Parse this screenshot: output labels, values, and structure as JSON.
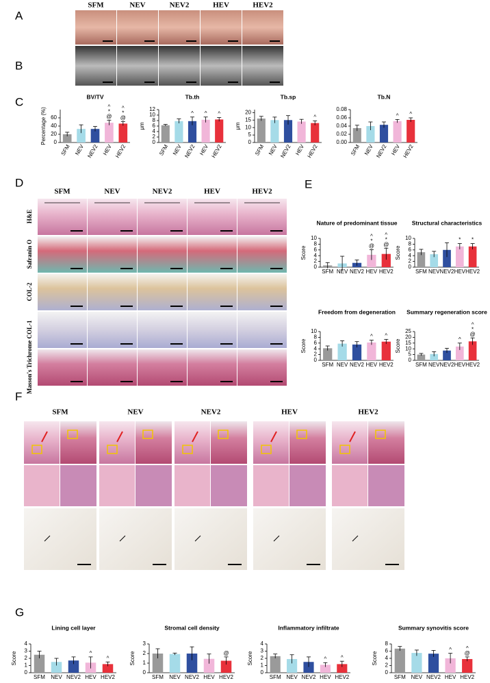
{
  "figure": {
    "panel_labels": [
      "A",
      "B",
      "C",
      "D",
      "E",
      "F",
      "G"
    ],
    "a_columns": [
      "SFM",
      "NEV",
      "NEV2",
      "HEV",
      "HEV2"
    ],
    "d_columns": [
      "SFM",
      "NEV",
      "NEV2",
      "HEV",
      "HEV2"
    ],
    "d_rows": [
      "H&E",
      "Safranin O",
      "COL-2",
      "COL-1",
      "Masson's Trichrome"
    ],
    "f_columns": [
      "SFM",
      "NEV",
      "NEV2",
      "HEV",
      "HEV2"
    ]
  },
  "chart_data": [
    {
      "type": "bar",
      "title": "BV/TV",
      "ylabel": "Percentage (%)",
      "categories": [
        "SFM",
        "NEV",
        "NEV2",
        "HEV",
        "HEV2"
      ],
      "colors": [
        "#9a9a9a",
        "#a5dbe8",
        "#2f4f9f",
        "#f1b6d9",
        "#e8313b"
      ],
      "values": [
        20,
        33,
        33,
        48,
        46
      ],
      "errors": [
        5,
        10,
        6,
        6,
        5
      ],
      "markers": [
        [],
        [],
        [],
        [
          "^",
          "*",
          "@"
        ],
        [
          "^",
          "*",
          "@"
        ]
      ],
      "ylim": [
        0,
        80
      ],
      "yticks": [
        0,
        20,
        40,
        60
      ]
    },
    {
      "type": "bar",
      "title": "Tb.th",
      "ylabel": "μm",
      "categories": [
        "SFM",
        "NEV",
        "NEV2",
        "HEV",
        "HEV2"
      ],
      "colors": [
        "#9a9a9a",
        "#a5dbe8",
        "#2f4f9f",
        "#f1b6d9",
        "#e8313b"
      ],
      "values": [
        6.3,
        7.8,
        7.8,
        8.3,
        8.4
      ],
      "errors": [
        0.3,
        0.8,
        1.5,
        1,
        0.7
      ],
      "markers": [
        [],
        [],
        [
          "^"
        ],
        [
          "^"
        ],
        [
          "^"
        ]
      ],
      "ylim": [
        0,
        12
      ],
      "yticks": [
        0,
        2,
        4,
        6,
        8,
        10,
        12
      ]
    },
    {
      "type": "bar",
      "title": "Tb.sp",
      "ylabel": "μm",
      "categories": [
        "SFM",
        "NEV",
        "NEV2",
        "HEV",
        "HEV2"
      ],
      "colors": [
        "#9a9a9a",
        "#a5dbe8",
        "#2f4f9f",
        "#f1b6d9",
        "#e8313b"
      ],
      "values": [
        16,
        15,
        15,
        14,
        13
      ],
      "errors": [
        1.5,
        2,
        3,
        1.5,
        1.5
      ],
      "markers": [
        [],
        [],
        [],
        [],
        [
          "^"
        ]
      ],
      "ylim": [
        0,
        22
      ],
      "yticks": [
        0,
        5,
        10,
        15,
        20
      ]
    },
    {
      "type": "bar",
      "title": "Tb.N",
      "categories": [
        "SFM",
        "NEV",
        "NEV2",
        "HEV",
        "HEV2"
      ],
      "colors": [
        "#9a9a9a",
        "#a5dbe8",
        "#2f4f9f",
        "#f1b6d9",
        "#e8313b"
      ],
      "values": [
        0.035,
        0.04,
        0.043,
        0.052,
        0.055
      ],
      "errors": [
        0.007,
        0.01,
        0.007,
        0.004,
        0.005
      ],
      "markers": [
        [],
        [],
        [],
        [
          "^"
        ],
        [
          "^"
        ]
      ],
      "ylim": [
        0,
        0.08
      ],
      "yticks": [
        {
          "value": 0,
          "label": "0.00"
        },
        0.02,
        0.04,
        0.06,
        0.08
      ]
    },
    {
      "type": "bar",
      "title": "Nature of predominant tissue",
      "ylabel": "Score",
      "categories": [
        "SFM",
        "NEV",
        "NEV2",
        "HEV",
        "HEV2"
      ],
      "colors": [
        "#9a9a9a",
        "#a5dbe8",
        "#2f4f9f",
        "#f1b6d9",
        "#e8313b"
      ],
      "values": [
        0.6,
        1.3,
        1.5,
        4.3,
        4.6
      ],
      "errors": [
        1,
        2.5,
        1,
        1.8,
        2
      ],
      "markers": [
        [],
        [],
        [],
        [
          "^",
          "*",
          "@"
        ],
        [
          "^",
          "*",
          "@"
        ]
      ],
      "ylim": [
        0,
        10
      ],
      "yticks": [
        0,
        2,
        4,
        6,
        8,
        10
      ]
    },
    {
      "type": "bar",
      "title": "Structural characteristics",
      "ylabel": "Score",
      "categories": [
        "SFM",
        "NEV",
        "NEV2",
        "HEV",
        "HEV2"
      ],
      "colors": [
        "#9a9a9a",
        "#a5dbe8",
        "#2f4f9f",
        "#f1b6d9",
        "#e8313b"
      ],
      "values": [
        5.2,
        4.5,
        6,
        7.2,
        7.2
      ],
      "errors": [
        1,
        1,
        2.5,
        1,
        1
      ],
      "markers": [
        [],
        [],
        [],
        [
          "*"
        ],
        [
          "*"
        ]
      ],
      "ylim": [
        0,
        10
      ],
      "yticks": [
        0,
        2,
        4,
        6,
        8,
        10
      ]
    },
    {
      "type": "bar",
      "title": "Freedom from degeneration",
      "ylabel": "Score",
      "categories": [
        "SFM",
        "NEV",
        "NEV2",
        "HEV",
        "HEV2"
      ],
      "colors": [
        "#9a9a9a",
        "#a5dbe8",
        "#2f4f9f",
        "#f1b6d9",
        "#e8313b"
      ],
      "values": [
        4.2,
        5.8,
        5.5,
        6.2,
        6.5
      ],
      "errors": [
        0.8,
        1,
        1,
        0.8,
        0.8
      ],
      "markers": [
        [],
        [],
        [],
        [
          "^"
        ],
        [
          "^"
        ]
      ],
      "ylim": [
        0,
        10
      ],
      "yticks": [
        0,
        2,
        4,
        6,
        8,
        10
      ]
    },
    {
      "type": "bar",
      "title": "Summary regeneration score",
      "ylabel": "Score",
      "categories": [
        "SFM",
        "NEV",
        "NEV2",
        "HEV",
        "HEV2"
      ],
      "colors": [
        "#9a9a9a",
        "#a5dbe8",
        "#2f4f9f",
        "#f1b6d9",
        "#e8313b"
      ],
      "values": [
        5,
        5.5,
        8.5,
        12,
        16.5
      ],
      "errors": [
        1,
        2,
        2,
        3,
        3
      ],
      "markers": [
        [],
        [],
        [],
        [
          "^"
        ],
        [
          "^",
          "*",
          "@"
        ]
      ],
      "ylim": [
        0,
        25
      ],
      "yticks": [
        0,
        5,
        10,
        15,
        20,
        25
      ]
    },
    {
      "type": "bar",
      "title": "Lining cell layer",
      "ylabel": "Score",
      "categories": [
        "SFM",
        "NEV",
        "NEV2",
        "HEV",
        "HEV2"
      ],
      "colors": [
        "#9a9a9a",
        "#a5dbe8",
        "#2f4f9f",
        "#f1b6d9",
        "#e8313b"
      ],
      "values": [
        2.5,
        1.5,
        1.7,
        1.4,
        1.2
      ],
      "errors": [
        0.5,
        0.5,
        0.5,
        0.8,
        0.3
      ],
      "markers": [
        [],
        [],
        [],
        [
          "^"
        ],
        [
          "^"
        ]
      ],
      "ylim": [
        0,
        4
      ],
      "yticks": [
        0,
        1,
        2,
        3,
        4
      ]
    },
    {
      "type": "bar",
      "title": "Stromal cell density",
      "ylabel": "Score",
      "categories": [
        "SFM",
        "NEV",
        "NEV2",
        "HEV",
        "HEV2"
      ],
      "colors": [
        "#9a9a9a",
        "#a5dbe8",
        "#2f4f9f",
        "#f1b6d9",
        "#e8313b"
      ],
      "values": [
        2,
        1.95,
        2,
        1.45,
        1.25
      ],
      "errors": [
        0.5,
        0.1,
        0.7,
        0.5,
        0.4
      ],
      "markers": [
        [],
        [],
        [],
        [],
        [
          "@"
        ]
      ],
      "ylim": [
        0,
        3
      ],
      "yticks": [
        0,
        1,
        2,
        3
      ]
    },
    {
      "type": "bar",
      "title": "Inflammatory infiltrate",
      "ylabel": "Score",
      "categories": [
        "SFM",
        "NEV",
        "NEV2",
        "HEV",
        "HEV2"
      ],
      "colors": [
        "#9a9a9a",
        "#a5dbe8",
        "#2f4f9f",
        "#f1b6d9",
        "#e8313b"
      ],
      "values": [
        2.3,
        1.9,
        1.5,
        1.1,
        1.2
      ],
      "errors": [
        0.3,
        0.6,
        0.7,
        0.3,
        0.4
      ],
      "markers": [
        [],
        [],
        [],
        [
          "^"
        ],
        [
          "^"
        ]
      ],
      "ylim": [
        0,
        4
      ],
      "yticks": [
        0,
        1,
        2,
        3,
        4
      ]
    },
    {
      "type": "bar",
      "title": "Summary synovitis score",
      "ylabel": "Score",
      "categories": [
        "SFM",
        "NEV",
        "NEV2",
        "HEV",
        "HEV2"
      ],
      "colors": [
        "#9a9a9a",
        "#a5dbe8",
        "#2f4f9f",
        "#f1b6d9",
        "#e8313b"
      ],
      "values": [
        6.7,
        5.5,
        5.3,
        4,
        3.8
      ],
      "errors": [
        0.6,
        0.8,
        0.9,
        1.4,
        0.6
      ],
      "markers": [
        [],
        [],
        [],
        [
          "^"
        ],
        [
          "^",
          "@"
        ]
      ],
      "ylim": [
        0,
        8
      ],
      "yticks": [
        0,
        2,
        4,
        6,
        8
      ]
    }
  ]
}
